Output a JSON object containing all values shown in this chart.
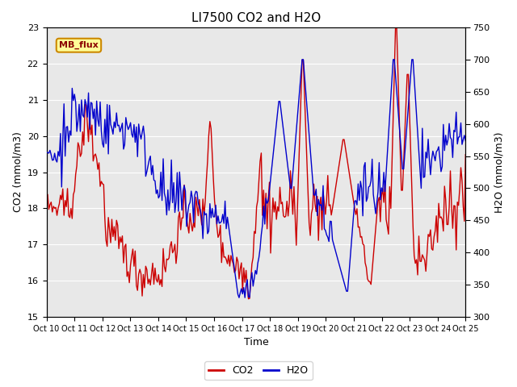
{
  "title": "LI7500 CO2 and H2O",
  "xlabel": "Time",
  "ylabel_left": "CO2 (mmol/m3)",
  "ylabel_right": "H2O (mmol/m3)",
  "ylim_left": [
    15.0,
    23.0
  ],
  "ylim_right": [
    300,
    750
  ],
  "yticks_left": [
    15.0,
    16.0,
    17.0,
    18.0,
    19.0,
    20.0,
    21.0,
    22.0,
    23.0
  ],
  "yticks_right": [
    300,
    350,
    400,
    450,
    500,
    550,
    600,
    650,
    700,
    750
  ],
  "xtick_labels": [
    "Oct 10",
    "Oct 11",
    "Oct 12",
    "Oct 13",
    "Oct 14",
    "Oct 15",
    "Oct 16",
    "Oct 17",
    "Oct 18",
    "Oct 19",
    "Oct 20",
    "Oct 21",
    "Oct 22",
    "Oct 23",
    "Oct 24",
    "Oct 25"
  ],
  "co2_color": "#cc0000",
  "h2o_color": "#0000cc",
  "bg_color": "#e8e8e8",
  "fig_bg_color": "#ffffff",
  "line_width": 1.0,
  "annotation_text": "MB_flux",
  "annotation_bg": "#ffff99",
  "annotation_border": "#cc8800",
  "legend_co2": "CO2",
  "legend_h2o": "H2O",
  "num_points": 360,
  "seed": 42
}
